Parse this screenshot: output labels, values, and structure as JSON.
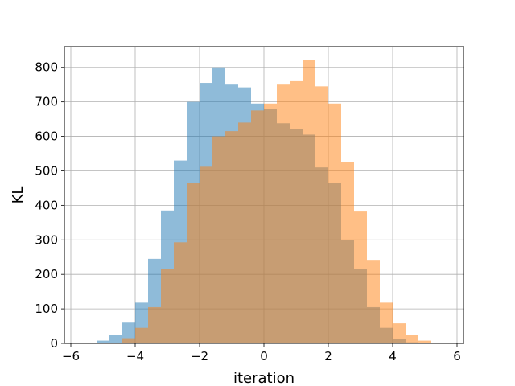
{
  "chart_data": {
    "type": "histogram",
    "xlabel": "iteration",
    "ylabel": "KL",
    "xlim": [
      -6.2,
      6.2
    ],
    "ylim": [
      0,
      860
    ],
    "xticks": [
      -6,
      -4,
      -2,
      0,
      2,
      4,
      6
    ],
    "yticks": [
      0,
      100,
      200,
      300,
      400,
      500,
      600,
      700,
      800
    ],
    "grid": true,
    "legend": "none",
    "series": [
      {
        "color": "#1f77b4",
        "alpha": 0.5,
        "bins": [
          {
            "x0": -5.6,
            "x1": -5.2,
            "count": 2
          },
          {
            "x0": -5.2,
            "x1": -4.8,
            "count": 8
          },
          {
            "x0": -4.8,
            "x1": -4.4,
            "count": 25
          },
          {
            "x0": -4.4,
            "x1": -4.0,
            "count": 60
          },
          {
            "x0": -4.0,
            "x1": -3.6,
            "count": 118
          },
          {
            "x0": -3.6,
            "x1": -3.2,
            "count": 245
          },
          {
            "x0": -3.2,
            "x1": -2.8,
            "count": 385
          },
          {
            "x0": -2.8,
            "x1": -2.4,
            "count": 530
          },
          {
            "x0": -2.4,
            "x1": -2.0,
            "count": 700
          },
          {
            "x0": -2.0,
            "x1": -1.6,
            "count": 755
          },
          {
            "x0": -1.6,
            "x1": -1.2,
            "count": 800
          },
          {
            "x0": -1.2,
            "x1": -0.8,
            "count": 750
          },
          {
            "x0": -0.8,
            "x1": -0.4,
            "count": 742
          },
          {
            "x0": -0.4,
            "x1": 0.0,
            "count": 695
          },
          {
            "x0": 0.0,
            "x1": 0.4,
            "count": 680
          },
          {
            "x0": 0.4,
            "x1": 0.8,
            "count": 638
          },
          {
            "x0": 0.8,
            "x1": 1.2,
            "count": 620
          },
          {
            "x0": 1.2,
            "x1": 1.6,
            "count": 605
          },
          {
            "x0": 1.6,
            "x1": 2.0,
            "count": 510
          },
          {
            "x0": 2.0,
            "x1": 2.4,
            "count": 465
          },
          {
            "x0": 2.4,
            "x1": 2.8,
            "count": 300
          },
          {
            "x0": 2.8,
            "x1": 3.2,
            "count": 215
          },
          {
            "x0": 3.2,
            "x1": 3.6,
            "count": 105
          },
          {
            "x0": 3.6,
            "x1": 4.0,
            "count": 45
          },
          {
            "x0": 4.0,
            "x1": 4.4,
            "count": 12
          },
          {
            "x0": 4.4,
            "x1": 4.8,
            "count": 3
          }
        ]
      },
      {
        "color": "#ff7f0e",
        "alpha": 0.5,
        "bins": [
          {
            "x0": -4.4,
            "x1": -4.0,
            "count": 15
          },
          {
            "x0": -4.0,
            "x1": -3.6,
            "count": 45
          },
          {
            "x0": -3.6,
            "x1": -3.2,
            "count": 105
          },
          {
            "x0": -3.2,
            "x1": -2.8,
            "count": 215
          },
          {
            "x0": -2.8,
            "x1": -2.4,
            "count": 293
          },
          {
            "x0": -2.4,
            "x1": -2.0,
            "count": 465
          },
          {
            "x0": -2.0,
            "x1": -1.6,
            "count": 512
          },
          {
            "x0": -1.6,
            "x1": -1.2,
            "count": 600
          },
          {
            "x0": -1.2,
            "x1": -0.8,
            "count": 615
          },
          {
            "x0": -0.8,
            "x1": -0.4,
            "count": 640
          },
          {
            "x0": -0.4,
            "x1": 0.0,
            "count": 675
          },
          {
            "x0": 0.0,
            "x1": 0.4,
            "count": 695
          },
          {
            "x0": 0.4,
            "x1": 0.8,
            "count": 750
          },
          {
            "x0": 0.8,
            "x1": 1.2,
            "count": 760
          },
          {
            "x0": 1.2,
            "x1": 1.6,
            "count": 822
          },
          {
            "x0": 1.6,
            "x1": 2.0,
            "count": 745
          },
          {
            "x0": 2.0,
            "x1": 2.4,
            "count": 695
          },
          {
            "x0": 2.4,
            "x1": 2.8,
            "count": 525
          },
          {
            "x0": 2.8,
            "x1": 3.2,
            "count": 382
          },
          {
            "x0": 3.2,
            "x1": 3.6,
            "count": 242
          },
          {
            "x0": 3.6,
            "x1": 4.0,
            "count": 118
          },
          {
            "x0": 4.0,
            "x1": 4.4,
            "count": 58
          },
          {
            "x0": 4.4,
            "x1": 4.8,
            "count": 25
          },
          {
            "x0": 4.8,
            "x1": 5.2,
            "count": 8
          },
          {
            "x0": 5.2,
            "x1": 5.6,
            "count": 2
          }
        ]
      }
    ]
  }
}
